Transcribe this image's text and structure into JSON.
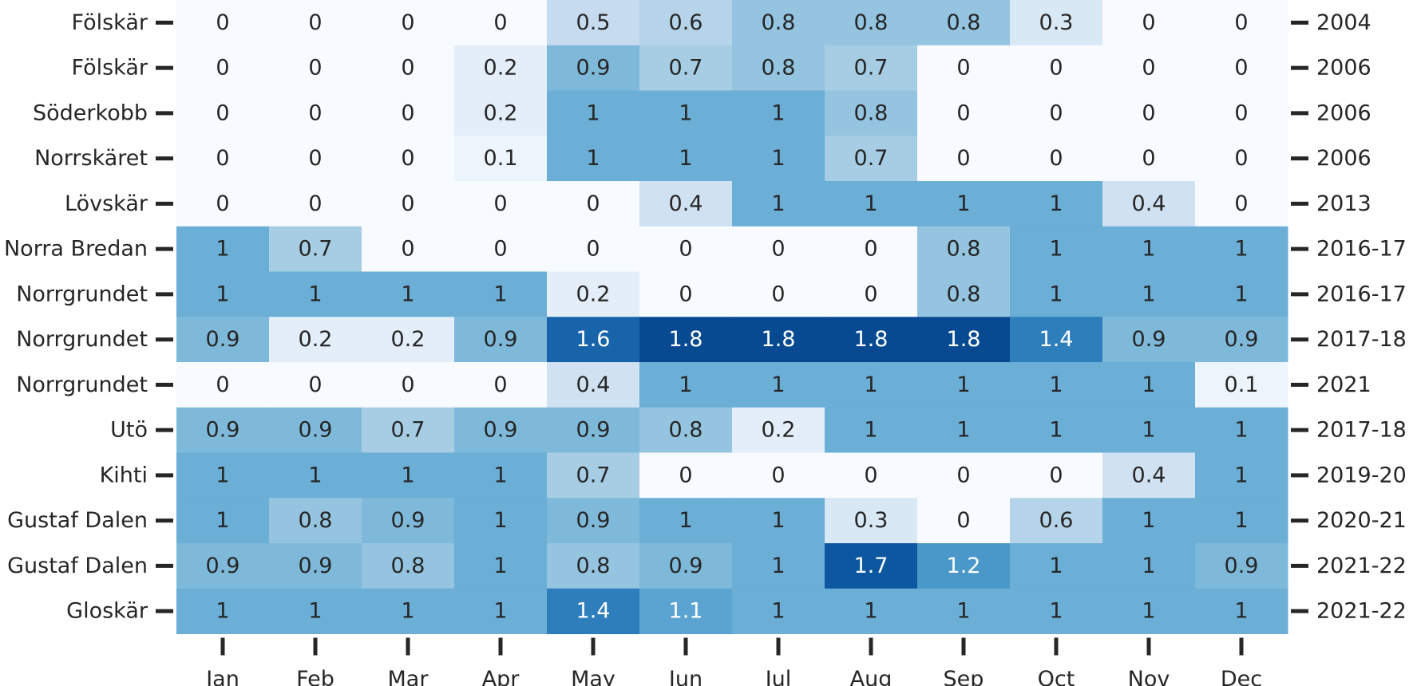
{
  "chart_data": {
    "type": "heatmap",
    "colormap": "Blues",
    "vmin": 0,
    "vmax": 2,
    "text_dark_color": "#262626",
    "text_light_color": "#ffffff",
    "tick_color": "#262626",
    "columns": [
      "Jan",
      "Feb",
      "Mar",
      "Apr",
      "May",
      "Jun",
      "Jul",
      "Aug",
      "Sep",
      "Oct",
      "Nov",
      "Dec"
    ],
    "rows": [
      {
        "label": "Fölskär",
        "period": "2004",
        "values": [
          0,
          0,
          0,
          0,
          0.5,
          0.6,
          0.8,
          0.8,
          0.8,
          0.3,
          0,
          0
        ]
      },
      {
        "label": "Fölskär",
        "period": "2006",
        "values": [
          0,
          0,
          0,
          0.2,
          0.9,
          0.7,
          0.8,
          0.7,
          0,
          0,
          0,
          0
        ]
      },
      {
        "label": "Söderkobb",
        "period": "2006",
        "values": [
          0,
          0,
          0,
          0.2,
          1,
          1,
          1,
          0.8,
          0,
          0,
          0,
          0
        ]
      },
      {
        "label": "Norrskäret",
        "period": "2006",
        "values": [
          0,
          0,
          0,
          0.1,
          1,
          1,
          1,
          0.7,
          0,
          0,
          0,
          0
        ]
      },
      {
        "label": "Lövskär",
        "period": "2013",
        "values": [
          0,
          0,
          0,
          0,
          0,
          0.4,
          1,
          1,
          1,
          1,
          0.4,
          0
        ]
      },
      {
        "label": "Norra Bredan",
        "period": "2016-17",
        "values": [
          1,
          0.7,
          0,
          0,
          0,
          0,
          0,
          0,
          0.8,
          1,
          1,
          1
        ]
      },
      {
        "label": "Norrgrundet",
        "period": "2016-17",
        "values": [
          1,
          1,
          1,
          1,
          0.2,
          0,
          0,
          0,
          0.8,
          1,
          1,
          1
        ]
      },
      {
        "label": "Norrgrundet",
        "period": "2017-18",
        "values": [
          0.9,
          0.2,
          0.2,
          0.9,
          1.6,
          1.8,
          1.8,
          1.8,
          1.8,
          1.4,
          0.9,
          0.9
        ]
      },
      {
        "label": "Norrgrundet",
        "period": "2021",
        "values": [
          0,
          0,
          0,
          0,
          0.4,
          1,
          1,
          1,
          1,
          1,
          1,
          0.1
        ]
      },
      {
        "label": "Utö",
        "period": "2017-18",
        "values": [
          0.9,
          0.9,
          0.7,
          0.9,
          0.9,
          0.8,
          0.2,
          1,
          1,
          1,
          1,
          1
        ]
      },
      {
        "label": "Kihti",
        "period": "2019-20",
        "values": [
          1,
          1,
          1,
          1,
          0.7,
          0,
          0,
          0,
          0,
          0,
          0.4,
          1
        ]
      },
      {
        "label": "Gustaf Dalen",
        "period": "2020-21",
        "values": [
          1,
          0.8,
          0.9,
          1,
          0.9,
          1,
          1,
          0.3,
          0,
          0.6,
          1,
          1
        ]
      },
      {
        "label": "Gustaf Dalen",
        "period": "2021-22",
        "values": [
          0.9,
          0.9,
          0.8,
          1,
          0.8,
          0.9,
          1,
          1.7,
          1.2,
          1,
          1,
          0.9
        ]
      },
      {
        "label": "Gloskär",
        "period": "2021-22",
        "values": [
          1,
          1,
          1,
          1,
          1.4,
          1.1,
          1,
          1,
          1,
          1,
          1,
          1
        ]
      }
    ]
  }
}
